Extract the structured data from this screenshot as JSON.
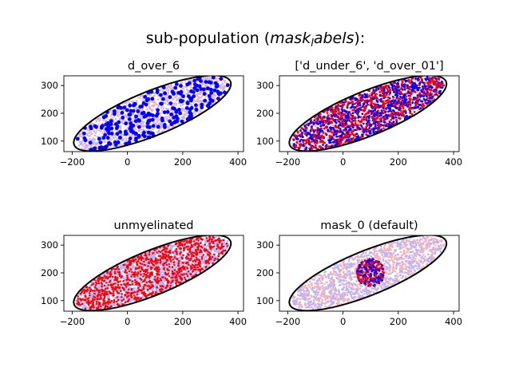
{
  "figure": {
    "title_prefix": "sub-population (",
    "title_math_main": "mask",
    "title_math_sub": "l",
    "title_math_rest": "abels",
    "title_suffix": "):"
  },
  "colors": {
    "dense_red": "#ff0000",
    "dense_blue": "#0000ff",
    "faint_red": "#ffb3b3",
    "faint_blue": "#b3b3ff",
    "ellipse": "#000000"
  },
  "chart_data": [
    {
      "type": "scatter",
      "title": "d_over_6",
      "xlim": [
        -230,
        420
      ],
      "ylim": [
        62,
        335
      ],
      "xticks": [
        -200,
        0,
        200,
        400
      ],
      "yticks": [
        100,
        200,
        300
      ],
      "xticklabels": [
        "−200",
        "0",
        "200",
        "400"
      ],
      "yticklabels": [
        "100",
        "200",
        "300"
      ],
      "grid": false,
      "boundary_ellipse": {
        "center": [
          90,
          200
        ],
        "semi_major": 305,
        "semi_minor": 80,
        "angle_deg": 22
      },
      "background_points": {
        "colors": [
          "faint_red",
          "faint_blue"
        ],
        "count": 1400,
        "marker_size": 1.2
      },
      "highlighted_points": {
        "colors": [
          "dense_blue"
        ],
        "count": 260,
        "marker_size": 2.4
      }
    },
    {
      "type": "scatter",
      "title": "['d_under_6', 'd_over_01']",
      "xlim": [
        -230,
        420
      ],
      "ylim": [
        62,
        335
      ],
      "xticks": [
        -200,
        0,
        200,
        400
      ],
      "yticks": [
        100,
        200,
        300
      ],
      "xticklabels": [
        "−200",
        "0",
        "200",
        "400"
      ],
      "yticklabels": [
        "100",
        "200",
        "300"
      ],
      "grid": false,
      "boundary_ellipse": {
        "center": [
          90,
          200
        ],
        "semi_major": 305,
        "semi_minor": 80,
        "angle_deg": 22
      },
      "background_points": {
        "colors": [
          "faint_red",
          "faint_blue"
        ],
        "count": 500,
        "marker_size": 1.2
      },
      "highlighted_points": {
        "colors": [
          "dense_red",
          "dense_blue"
        ],
        "count": 1700,
        "marker_size": 1.4
      }
    },
    {
      "type": "scatter",
      "title": "unmyelinated",
      "xlim": [
        -230,
        420
      ],
      "ylim": [
        62,
        335
      ],
      "xticks": [
        -200,
        0,
        200,
        400
      ],
      "yticks": [
        100,
        200,
        300
      ],
      "xticklabels": [
        "−200",
        "0",
        "200",
        "400"
      ],
      "yticklabels": [
        "100",
        "200",
        "300"
      ],
      "grid": false,
      "boundary_ellipse": {
        "center": [
          90,
          200
        ],
        "semi_major": 305,
        "semi_minor": 80,
        "angle_deg": 22
      },
      "background_points": {
        "colors": [
          "faint_blue"
        ],
        "count": 1500,
        "marker_size": 1.4
      },
      "highlighted_points": {
        "colors": [
          "dense_red"
        ],
        "count": 1000,
        "marker_size": 1.3
      }
    },
    {
      "type": "scatter",
      "title": "mask_0 (default)",
      "xlim": [
        -230,
        420
      ],
      "ylim": [
        62,
        335
      ],
      "xticks": [
        -200,
        0,
        200,
        400
      ],
      "yticks": [
        100,
        200,
        300
      ],
      "xticklabels": [
        "−200",
        "0",
        "200",
        "400"
      ],
      "yticklabels": [
        "100",
        "200",
        "300"
      ],
      "grid": false,
      "boundary_ellipse": {
        "center": [
          90,
          200
        ],
        "semi_major": 305,
        "semi_minor": 80,
        "angle_deg": 22
      },
      "background_points": {
        "colors": [
          "faint_blue",
          "faint_red"
        ],
        "count": 1500,
        "marker_size": 1.3
      },
      "highlighted_points": {
        "colors": [
          "dense_blue",
          "dense_red"
        ],
        "count": 260,
        "marker_size": 1.4,
        "region": {
          "center": [
            100,
            200
          ],
          "radius": 50
        }
      }
    }
  ]
}
